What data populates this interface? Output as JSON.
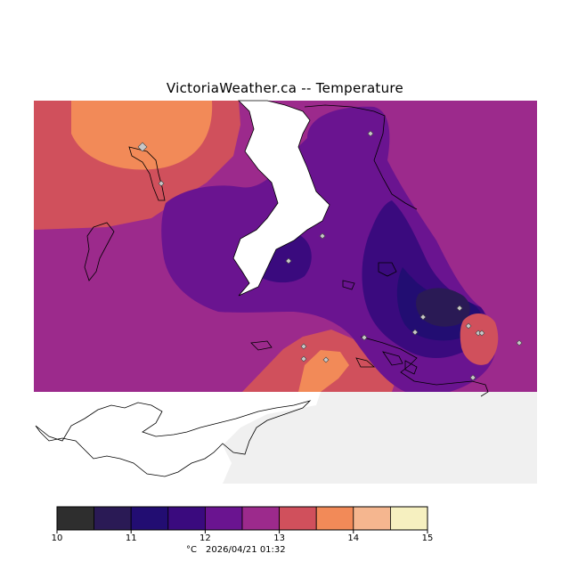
{
  "title": "VictoriaWeather.ca -- Temperature",
  "caption": {
    "unit": "°C",
    "timestamp": "2026/04/21 01:32"
  },
  "legend": {
    "ticks": [
      "10",
      "11",
      "12",
      "13",
      "14",
      "15"
    ],
    "bins": [
      {
        "from": 10.0,
        "to": 10.5,
        "color": "#2e2e2e"
      },
      {
        "from": 10.5,
        "to": 11.0,
        "color": "#2a1a55"
      },
      {
        "from": 11.0,
        "to": 11.5,
        "color": "#220d72"
      },
      {
        "from": 11.5,
        "to": 12.0,
        "color": "#3a0a7e"
      },
      {
        "from": 12.0,
        "to": 12.5,
        "color": "#6a1490"
      },
      {
        "from": 12.5,
        "to": 13.0,
        "color": "#9c2a8c"
      },
      {
        "from": 13.0,
        "to": 13.5,
        "color": "#d0505c"
      },
      {
        "from": 13.5,
        "to": 14.0,
        "color": "#f28a58"
      },
      {
        "from": 14.0,
        "to": 14.5,
        "color": "#f5b68f"
      },
      {
        "from": 14.5,
        "to": 15.0,
        "color": "#f6f0c0"
      }
    ]
  },
  "colors": {
    "no_data": "#f0f0f0",
    "land_outline": "#000000",
    "station_marker": "#c8c8c8"
  }
}
